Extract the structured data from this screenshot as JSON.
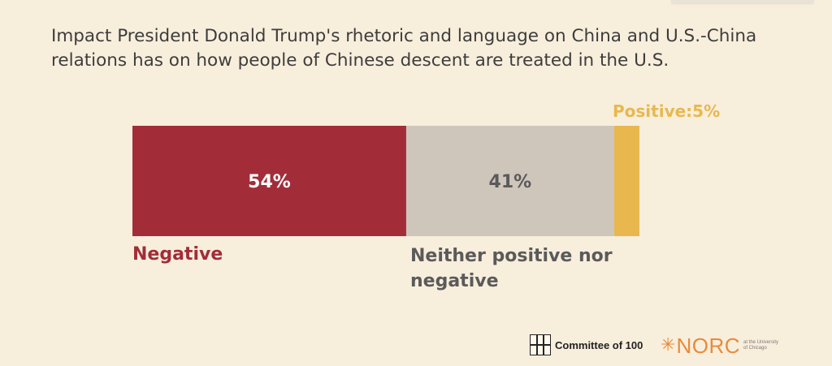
{
  "chart_data": {
    "type": "bar",
    "orientation": "horizontal-stacked",
    "title": "Impact President Donald Trump's rhetoric and language on China and U.S.-China relations has on how people of Chinese descent are treated in the U.S.",
    "xlabel": "",
    "ylabel": "",
    "xlim": [
      0,
      100
    ],
    "series": [
      {
        "name": "Negative",
        "value": 54,
        "value_label": "54%",
        "color": "#a22d39",
        "label_color": "#a22d39",
        "value_label_color": "#ffffff"
      },
      {
        "name": "Neither positive nor negative",
        "value": 41,
        "value_label": "41%",
        "color": "#cfc6bb",
        "label_color": "#5a5a5a",
        "value_label_color": "#5a5a5a"
      },
      {
        "name": "Positive",
        "value": 5,
        "value_label": "Positive:5%",
        "color": "#e8b84f",
        "label_color": "#e8b84f"
      }
    ]
  },
  "labels": {
    "negative": "Negative",
    "neither_line1": "Neither positive nor",
    "neither_line2": "negative",
    "positive": "Positive:5%"
  },
  "footer": {
    "committee_text": "Committee of 100",
    "norc_text": "NORC",
    "norc_sub": "at the University of Chicago",
    "committee_logo_glyphs": "百人會"
  },
  "colors": {
    "background": "#f8eedc",
    "norc_orange": "#e98a3b"
  }
}
